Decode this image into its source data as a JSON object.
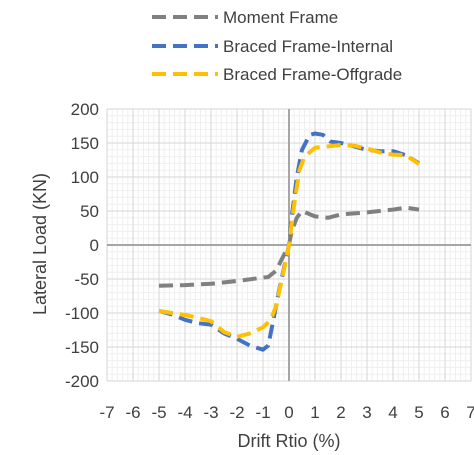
{
  "chart_data": {
    "type": "line",
    "title": "",
    "xlabel": "Drift Rtio (%)",
    "ylabel": "Lateral Load (KN)",
    "xlim": [
      -7,
      7
    ],
    "ylim": [
      -200,
      200
    ],
    "xticks": [
      -7,
      -6,
      -5,
      -4,
      -3,
      -2,
      -1,
      0,
      1,
      2,
      3,
      4,
      5,
      6,
      7
    ],
    "yticks": [
      -200,
      -150,
      -100,
      -50,
      0,
      50,
      100,
      150,
      200
    ],
    "grid": true,
    "legend_position": "top",
    "series": [
      {
        "name": "Moment Frame",
        "color": "#808080",
        "dash": "dashed",
        "x": [
          -5,
          -4,
          -3,
          -2,
          -1.2,
          -0.8,
          -0.5,
          -0.2,
          0,
          0.1,
          0.3,
          0.5,
          1,
          1.5,
          2,
          3,
          4,
          4.5,
          5
        ],
        "y": [
          -60,
          -59,
          -57,
          -53,
          -49,
          -47,
          -38,
          -15,
          0,
          20,
          40,
          50,
          42,
          40,
          45,
          48,
          52,
          55,
          52
        ]
      },
      {
        "name": "Braced Frame-Internal",
        "color": "#4472C4",
        "dash": "dashed",
        "x": [
          -5,
          -4.5,
          -4,
          -3.5,
          -3,
          -2.5,
          -2,
          -1.5,
          -1,
          -0.8,
          -0.6,
          -0.4,
          -0.2,
          0,
          0.1,
          0.3,
          0.5,
          0.8,
          1,
          1.3,
          1.6,
          2,
          2.5,
          3,
          3.5,
          4,
          4.5,
          5
        ],
        "y": [
          -97,
          -102,
          -110,
          -115,
          -117,
          -130,
          -138,
          -148,
          -154,
          -148,
          -110,
          -70,
          -35,
          0,
          40,
          100,
          140,
          162,
          164,
          162,
          152,
          150,
          145,
          140,
          138,
          138,
          132,
          120
        ]
      },
      {
        "name": "Braced Frame-Offgrade",
        "color": "#FFC000",
        "dash": "dashed",
        "x": [
          -5,
          -4.5,
          -4,
          -3.5,
          -3,
          -2.5,
          -2,
          -1.5,
          -1,
          -0.7,
          -0.5,
          -0.3,
          -0.1,
          0,
          0.2,
          0.4,
          0.6,
          1,
          1.5,
          2,
          2.5,
          3,
          3.5,
          4,
          4.5,
          5
        ],
        "y": [
          -97,
          -100,
          -103,
          -107,
          -112,
          -128,
          -135,
          -130,
          -121,
          -110,
          -90,
          -55,
          -20,
          0,
          60,
          110,
          130,
          143,
          145,
          147,
          146,
          142,
          136,
          133,
          132,
          119
        ]
      }
    ]
  }
}
